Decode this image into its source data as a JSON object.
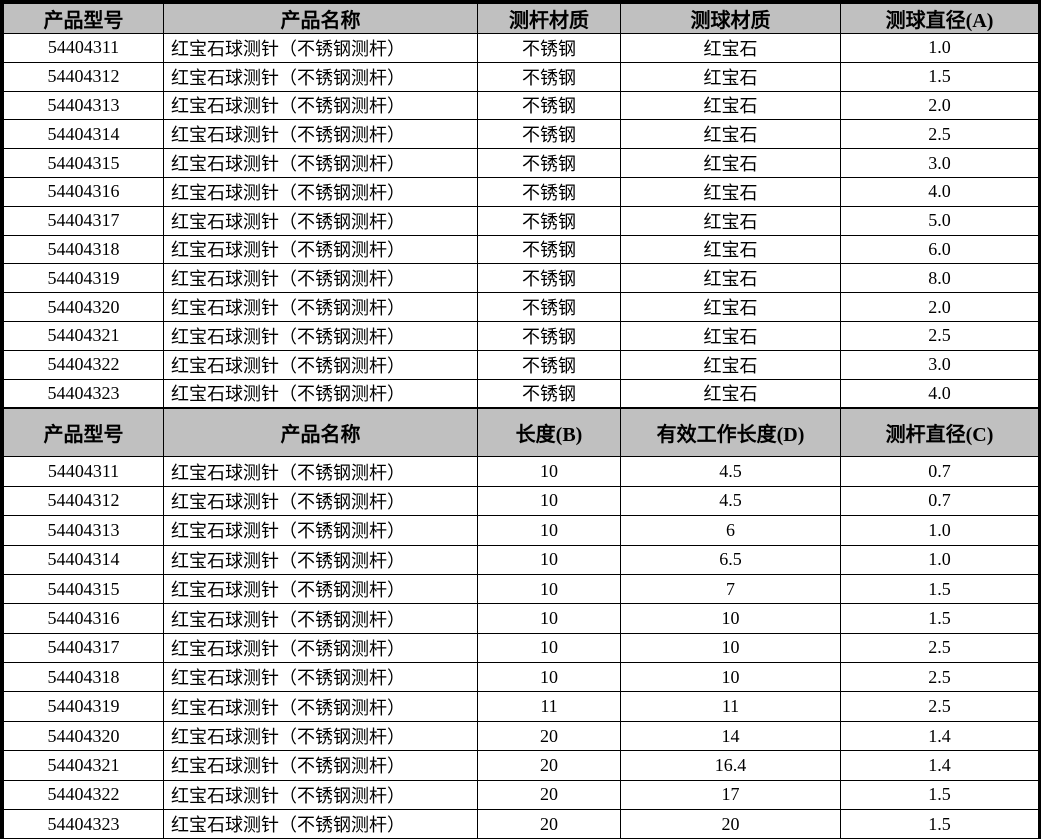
{
  "colors": {
    "header_bg": "#c0c0c0",
    "border": "#000000",
    "text": "#000000",
    "page_bg": "#ffffff"
  },
  "table1": {
    "headers": [
      "产品型号",
      "产品名称",
      "测杆材质",
      "测球材质",
      "测球直径(A)"
    ],
    "rows": [
      [
        "54404311",
        "红宝石球测针（不锈钢测杆）",
        "不锈钢",
        "红宝石",
        "1.0"
      ],
      [
        "54404312",
        "红宝石球测针（不锈钢测杆）",
        "不锈钢",
        "红宝石",
        "1.5"
      ],
      [
        "54404313",
        "红宝石球测针（不锈钢测杆）",
        "不锈钢",
        "红宝石",
        "2.0"
      ],
      [
        "54404314",
        "红宝石球测针（不锈钢测杆）",
        "不锈钢",
        "红宝石",
        "2.5"
      ],
      [
        "54404315",
        "红宝石球测针（不锈钢测杆）",
        "不锈钢",
        "红宝石",
        "3.0"
      ],
      [
        "54404316",
        "红宝石球测针（不锈钢测杆）",
        "不锈钢",
        "红宝石",
        "4.0"
      ],
      [
        "54404317",
        "红宝石球测针（不锈钢测杆）",
        "不锈钢",
        "红宝石",
        "5.0"
      ],
      [
        "54404318",
        "红宝石球测针（不锈钢测杆）",
        "不锈钢",
        "红宝石",
        "6.0"
      ],
      [
        "54404319",
        "红宝石球测针（不锈钢测杆）",
        "不锈钢",
        "红宝石",
        "8.0"
      ],
      [
        "54404320",
        "红宝石球测针（不锈钢测杆）",
        "不锈钢",
        "红宝石",
        "2.0"
      ],
      [
        "54404321",
        "红宝石球测针（不锈钢测杆）",
        "不锈钢",
        "红宝石",
        "2.5"
      ],
      [
        "54404322",
        "红宝石球测针（不锈钢测杆）",
        "不锈钢",
        "红宝石",
        "3.0"
      ],
      [
        "54404323",
        "红宝石球测针（不锈钢测杆）",
        "不锈钢",
        "红宝石",
        "4.0"
      ]
    ]
  },
  "table2": {
    "headers": [
      "产品型号",
      "产品名称",
      "长度(B)",
      "有效工作长度(D)",
      "测杆直径(C)"
    ],
    "rows": [
      [
        "54404311",
        "红宝石球测针（不锈钢测杆）",
        "10",
        "4.5",
        "0.7"
      ],
      [
        "54404312",
        "红宝石球测针（不锈钢测杆）",
        "10",
        "4.5",
        "0.7"
      ],
      [
        "54404313",
        "红宝石球测针（不锈钢测杆）",
        "10",
        "6",
        "1.0"
      ],
      [
        "54404314",
        "红宝石球测针（不锈钢测杆）",
        "10",
        "6.5",
        "1.0"
      ],
      [
        "54404315",
        "红宝石球测针（不锈钢测杆）",
        "10",
        "7",
        "1.5"
      ],
      [
        "54404316",
        "红宝石球测针（不锈钢测杆）",
        "10",
        "10",
        "1.5"
      ],
      [
        "54404317",
        "红宝石球测针（不锈钢测杆）",
        "10",
        "10",
        "2.5"
      ],
      [
        "54404318",
        "红宝石球测针（不锈钢测杆）",
        "10",
        "10",
        "2.5"
      ],
      [
        "54404319",
        "红宝石球测针（不锈钢测杆）",
        "11",
        "11",
        "2.5"
      ],
      [
        "54404320",
        "红宝石球测针（不锈钢测杆）",
        "20",
        "14",
        "1.4"
      ],
      [
        "54404321",
        "红宝石球测针（不锈钢测杆）",
        "20",
        "16.4",
        "1.4"
      ],
      [
        "54404322",
        "红宝石球测针（不锈钢测杆）",
        "20",
        "17",
        "1.5"
      ],
      [
        "54404323",
        "红宝石球测针（不锈钢测杆）",
        "20",
        "20",
        "1.5"
      ]
    ]
  }
}
